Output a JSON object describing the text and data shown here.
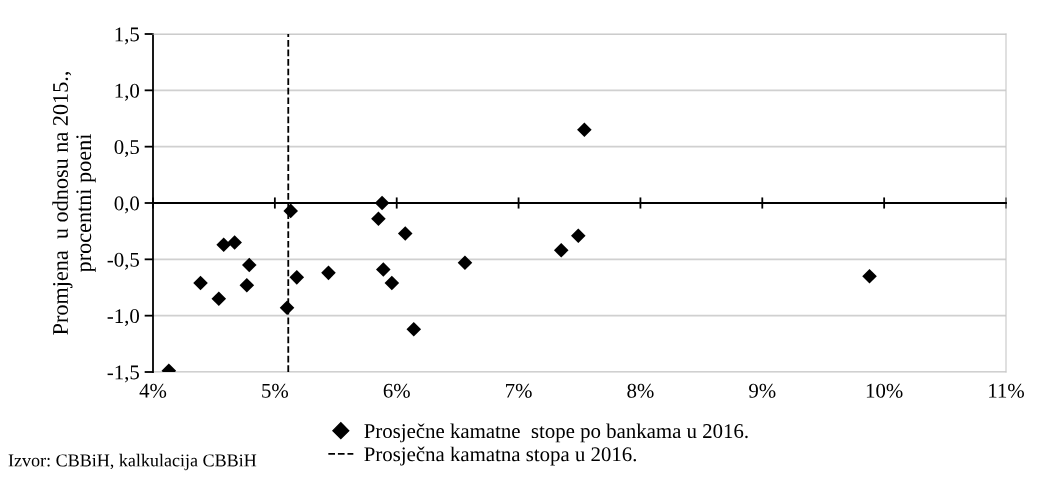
{
  "chart_data": {
    "type": "scatter",
    "ylabel": "Promjena  u odnosu na 2015.,\nprocentni poeni",
    "x": [
      4.13,
      4.39,
      4.54,
      4.58,
      4.67,
      4.79,
      4.77,
      5.1,
      5.13,
      5.18,
      5.44,
      5.85,
      5.88,
      5.89,
      5.96,
      6.07,
      6.14,
      6.56,
      7.35,
      7.49,
      7.54,
      9.88
    ],
    "series": [
      {
        "name": "Prosječne kamatne  stope po bankama u 2016.",
        "color": "#000000",
        "values": [
          -1.49,
          -0.71,
          -0.85,
          -0.37,
          -0.35,
          -0.55,
          -0.73,
          -0.93,
          -0.07,
          -0.66,
          -0.62,
          -0.14,
          0.0,
          -0.59,
          -0.71,
          -0.27,
          -1.12,
          -0.53,
          -0.42,
          -0.29,
          0.65,
          -0.65
        ]
      }
    ],
    "marker": "diamond",
    "ref_lines": [
      {
        "axis": "x",
        "value": 5.11,
        "label": "Prosječna kamatna stopa u 2016.",
        "color": "#000000",
        "line_style": "dashed"
      }
    ],
    "xlim": [
      4,
      11
    ],
    "xticks": [
      {
        "value": 4,
        "label": "4%"
      },
      {
        "value": 5,
        "label": "5%"
      },
      {
        "value": 6,
        "label": "6%"
      },
      {
        "value": 7,
        "label": "7%"
      },
      {
        "value": 8,
        "label": "8%"
      },
      {
        "value": 9,
        "label": "9%"
      },
      {
        "value": 10,
        "label": "10%"
      },
      {
        "value": 11,
        "label": "11%"
      }
    ],
    "ylim": [
      -1.5,
      1.5
    ],
    "yticks": [
      {
        "value": -1.5,
        "label": "-1,5"
      },
      {
        "value": -1.0,
        "label": "-1,0"
      },
      {
        "value": -0.5,
        "label": "-0,5"
      },
      {
        "value": 0.0,
        "label": "0,0"
      },
      {
        "value": 0.5,
        "label": "0,5"
      },
      {
        "value": 1.0,
        "label": "1,0"
      },
      {
        "value": 1.5,
        "label": "1,5"
      }
    ],
    "grid": "y",
    "legend": "bottom",
    "annotations": [
      "Izvor: CBBiH, kalkulacija CBBiH"
    ]
  }
}
